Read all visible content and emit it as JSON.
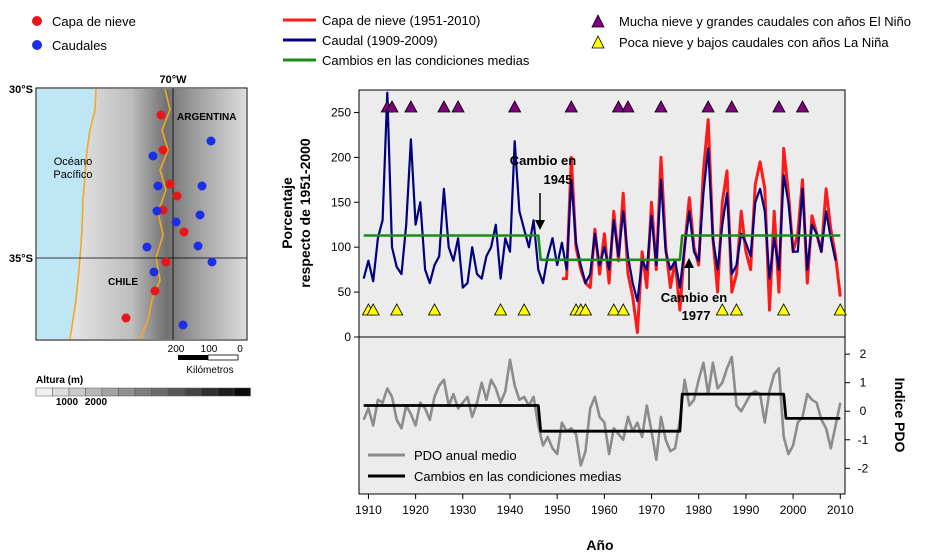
{
  "map": {
    "legend": [
      {
        "label": "Capa de nieve",
        "color": "#e8161b"
      },
      {
        "label": "Caudales",
        "color": "#1d2fe6"
      }
    ],
    "lon_label": "70°W",
    "lat_labels": [
      "30°S",
      "35°S"
    ],
    "ocean_label_1": "Océano",
    "ocean_label_2": "Pacífico",
    "country_argentina": "ARGENTINA",
    "country_chile": "CHILE",
    "scale_ticks": [
      "200",
      "100",
      "0"
    ],
    "scale_unit": "Kilómetros",
    "altitude_title": "Altura (m)",
    "altitude_ticks": [
      "1000",
      "2000"
    ],
    "snow_points": [
      [
        161,
        115
      ],
      [
        163,
        150
      ],
      [
        170,
        184
      ],
      [
        177,
        196
      ],
      [
        163,
        210
      ],
      [
        184,
        232
      ],
      [
        166,
        262
      ],
      [
        155,
        291
      ],
      [
        126,
        318
      ]
    ],
    "flow_points": [
      [
        211,
        141
      ],
      [
        153,
        156
      ],
      [
        158,
        186
      ],
      [
        202,
        186
      ],
      [
        157,
        211
      ],
      [
        200,
        215
      ],
      [
        176,
        222
      ],
      [
        147,
        247
      ],
      [
        198,
        246
      ],
      [
        212,
        262
      ],
      [
        154,
        272
      ],
      [
        183,
        325
      ]
    ]
  },
  "top_legend": [
    {
      "label": "Capa de nieve (1951-2010)",
      "color": "#ff1a1a"
    },
    {
      "label": "Caudal (1909-2009)",
      "color": "#000080"
    },
    {
      "label": "Cambios en las condiciones medias",
      "color": "#1a8c1a"
    }
  ],
  "marker_legend": [
    {
      "label": "Mucha nieve y grandes caudales con años El Niño",
      "color": "#800080"
    },
    {
      "label": "Poca nieve y bajos caudales con años La Niña",
      "color": "#ffff00"
    }
  ],
  "chart_data": [
    {
      "type": "line",
      "ylabel": "Porcentaje respecto de 1951-2000",
      "ylabel_line1": "Porcentaje",
      "ylabel_line2": "respecto de 1951-2000",
      "xlim": [
        1908,
        2011
      ],
      "ylim": [
        0,
        275
      ],
      "yticks": [
        0,
        50,
        100,
        150,
        200,
        250
      ],
      "series": [
        {
          "name": "Caudal (1909-2009)",
          "color": "#000080",
          "x": [
            1909,
            1910,
            1911,
            1912,
            1913,
            1914,
            1915,
            1916,
            1917,
            1918,
            1919,
            1920,
            1921,
            1922,
            1923,
            1924,
            1925,
            1926,
            1927,
            1928,
            1929,
            1930,
            1931,
            1932,
            1933,
            1934,
            1935,
            1936,
            1937,
            1938,
            1939,
            1940,
            1941,
            1942,
            1943,
            1944,
            1945,
            1946,
            1947,
            1948,
            1949,
            1950,
            1951,
            1952,
            1953,
            1954,
            1955,
            1956,
            1957,
            1958,
            1959,
            1960,
            1961,
            1962,
            1963,
            1964,
            1965,
            1966,
            1967,
            1968,
            1969,
            1970,
            1971,
            1972,
            1973,
            1974,
            1975,
            1976,
            1977,
            1978,
            1979,
            1980,
            1981,
            1982,
            1983,
            1984,
            1985,
            1986,
            1987,
            1988,
            1989,
            1990,
            1991,
            1992,
            1993,
            1994,
            1995,
            1996,
            1997,
            1998,
            1999,
            2000,
            2001,
            2002,
            2003,
            2004,
            2005,
            2006,
            2007,
            2008,
            2009
          ],
          "y": [
            65,
            85,
            62,
            110,
            130,
            272,
            100,
            78,
            70,
            125,
            220,
            125,
            150,
            75,
            60,
            80,
            90,
            165,
            100,
            85,
            110,
            55,
            60,
            100,
            70,
            65,
            90,
            100,
            125,
            65,
            110,
            95,
            218,
            140,
            120,
            100,
            130,
            75,
            60,
            90,
            110,
            80,
            105,
            75,
            175,
            105,
            80,
            60,
            70,
            115,
            80,
            100,
            75,
            130,
            90,
            140,
            90,
            60,
            40,
            85,
            75,
            135,
            80,
            175,
            95,
            75,
            85,
            55,
            100,
            140,
            95,
            85,
            160,
            210,
            110,
            75,
            125,
            160,
            70,
            80,
            115,
            105,
            90,
            150,
            165,
            140,
            65,
            110,
            75,
            180,
            150,
            95,
            95,
            165,
            75,
            125,
            115,
            95,
            140,
            110,
            85
          ]
        },
        {
          "name": "Capa de nieve (1951-2010)",
          "color": "#ff1a1a",
          "x": [
            1951,
            1952,
            1953,
            1954,
            1955,
            1956,
            1957,
            1958,
            1959,
            1960,
            1961,
            1962,
            1963,
            1964,
            1965,
            1966,
            1967,
            1968,
            1969,
            1970,
            1971,
            1972,
            1973,
            1974,
            1975,
            1976,
            1977,
            1978,
            1979,
            1980,
            1981,
            1982,
            1983,
            1984,
            1985,
            1986,
            1987,
            1988,
            1989,
            1990,
            1991,
            1992,
            1993,
            1994,
            1995,
            1996,
            1997,
            1998,
            1999,
            2000,
            2001,
            2002,
            2003,
            2004,
            2005,
            2006,
            2007,
            2008,
            2009,
            2010
          ],
          "y": [
            65,
            65,
            200,
            100,
            75,
            60,
            55,
            120,
            70,
            115,
            60,
            140,
            85,
            160,
            70,
            45,
            5,
            95,
            55,
            150,
            75,
            200,
            100,
            55,
            85,
            30,
            100,
            155,
            100,
            80,
            185,
            242,
            110,
            50,
            150,
            185,
            50,
            70,
            140,
            95,
            75,
            170,
            195,
            165,
            30,
            140,
            50,
            210,
            160,
            95,
            115,
            175,
            60,
            135,
            115,
            95,
            165,
            120,
            90,
            45
          ]
        },
        {
          "name": "Cambios en las condiciones medias",
          "color": "#1a8c1a",
          "x": [
            1909,
            1946,
            1946.5,
            1976,
            1976.5,
            2010
          ],
          "y": [
            113,
            113,
            86,
            86,
            113,
            113
          ]
        }
      ],
      "el_nino_years": [
        1914,
        1915,
        1919,
        1926,
        1929,
        1941,
        1953,
        1963,
        1965,
        1972,
        1982,
        1987,
        1997,
        2002
      ],
      "la_nina_years": [
        1910,
        1911,
        1916,
        1924,
        1938,
        1943,
        1954,
        1955,
        1956,
        1962,
        1964,
        1985,
        1988,
        1998,
        2010
      ],
      "annotations": [
        {
          "text1": "Cambio en",
          "text2": "1945"
        },
        {
          "text1": "Cambio en",
          "text2": "1977"
        }
      ]
    },
    {
      "type": "line",
      "ylabel": "Indice PDO",
      "xlabel": "Año",
      "xlim": [
        1908,
        2011
      ],
      "xticks": [
        1910,
        1920,
        1930,
        1940,
        1950,
        1960,
        1970,
        1980,
        1990,
        2000,
        2010
      ],
      "ylim": [
        -2.9,
        2.6
      ],
      "yticks": [
        -2,
        -1,
        0,
        1,
        2
      ],
      "series": [
        {
          "name": "PDO anual medio",
          "color": "#8c8c8c",
          "x": [
            1909,
            1910,
            1911,
            1912,
            1913,
            1914,
            1915,
            1916,
            1917,
            1918,
            1919,
            1920,
            1921,
            1922,
            1923,
            1924,
            1925,
            1926,
            1927,
            1928,
            1929,
            1930,
            1931,
            1932,
            1933,
            1934,
            1935,
            1936,
            1937,
            1938,
            1939,
            1940,
            1941,
            1942,
            1943,
            1944,
            1945,
            1946,
            1947,
            1948,
            1949,
            1950,
            1951,
            1952,
            1953,
            1954,
            1955,
            1956,
            1957,
            1958,
            1959,
            1960,
            1961,
            1962,
            1963,
            1964,
            1965,
            1966,
            1967,
            1968,
            1969,
            1970,
            1971,
            1972,
            1973,
            1974,
            1975,
            1976,
            1977,
            1978,
            1979,
            1980,
            1981,
            1982,
            1983,
            1984,
            1985,
            1986,
            1987,
            1988,
            1989,
            1990,
            1991,
            1992,
            1993,
            1994,
            1995,
            1996,
            1997,
            1998,
            1999,
            2000,
            2001,
            2002,
            2003,
            2004,
            2005,
            2006,
            2007,
            2008,
            2009,
            2010
          ],
          "y": [
            -0.3,
            0.1,
            -0.5,
            0.4,
            0.3,
            0.8,
            0.5,
            -0.3,
            -0.6,
            0.2,
            -0.1,
            -0.5,
            0.3,
            0.1,
            -0.3,
            0.5,
            0.9,
            1.1,
            0.2,
            0.6,
            0.1,
            0.3,
            0.5,
            -0.2,
            0.3,
            1.0,
            0.4,
            1.1,
            0.8,
            0.3,
            0.7,
            1.8,
            0.9,
            0.4,
            0.5,
            0.2,
            0.5,
            -0.5,
            -1.2,
            -0.9,
            -1.3,
            -1.5,
            -0.4,
            -0.7,
            -0.6,
            -0.8,
            -1.9,
            -1.4,
            0.1,
            0.5,
            -0.2,
            -0.4,
            -1.5,
            -0.6,
            -0.8,
            -1.0,
            -0.2,
            -0.7,
            -0.4,
            -0.9,
            0.2,
            -0.7,
            -1.7,
            -0.2,
            -1.0,
            -1.4,
            -1.3,
            -0.3,
            1.1,
            0.2,
            0.4,
            1.1,
            1.7,
            0.6,
            1.7,
            0.8,
            1.0,
            1.5,
            1.9,
            0.2,
            0.0,
            0.3,
            0.6,
            0.7,
            0.6,
            -0.4,
            0.7,
            1.3,
            1.5,
            -0.9,
            -1.5,
            -1.2,
            -0.4,
            -0.2,
            0.6,
            0.4,
            0.3,
            -0.3,
            -0.6,
            -1.3,
            -0.5,
            0.3
          ]
        },
        {
          "name": "Cambios en las condiciones medias",
          "color": "#000000",
          "x": [
            1909,
            1946,
            1946.5,
            1976,
            1976.5,
            1998,
            1998.5,
            2010
          ],
          "y": [
            0.2,
            0.2,
            -0.7,
            -0.7,
            0.6,
            0.6,
            -0.25,
            -0.25
          ]
        }
      ]
    }
  ]
}
